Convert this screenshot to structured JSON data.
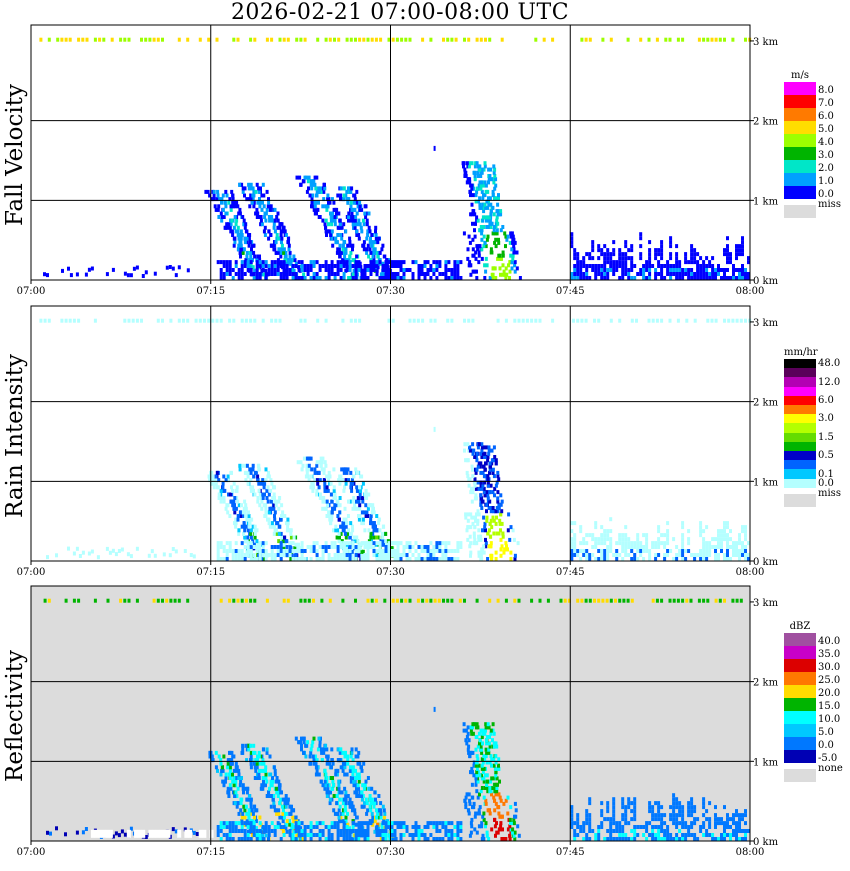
{
  "title": "2026-02-21   07:00-08:00 UTC",
  "x_ticks": [
    "07:00",
    "07:15",
    "07:30",
    "07:45",
    "08:00"
  ],
  "y_ticks": [
    "0 km",
    "1 km",
    "2 km",
    "3 km"
  ],
  "colors": {
    "missing": "#dcdcdc",
    "grid": "#000000"
  },
  "panels": [
    {
      "id": "fall-velocity",
      "label": "Fall Velocity",
      "unit": "m/s",
      "background": "#ffffff",
      "legend": [
        {
          "label": "8.0",
          "color": "#ff00ff"
        },
        {
          "label": "7.0",
          "color": "#ff0000"
        },
        {
          "label": "6.0",
          "color": "#ff7a00"
        },
        {
          "label": "5.0",
          "color": "#ffdd00"
        },
        {
          "label": "4.0",
          "color": "#9cff00"
        },
        {
          "label": "3.0",
          "color": "#00b400"
        },
        {
          "label": "2.0",
          "color": "#00e6c8"
        },
        {
          "label": "1.0",
          "color": "#00a0ff"
        },
        {
          "label": "0.0",
          "color": "#0000ff"
        }
      ],
      "missing_label": "miss"
    },
    {
      "id": "rain-intensity",
      "label": "Rain Intensity",
      "unit": "mm/hr",
      "background": "#ffffff",
      "legend": [
        {
          "label": "48.0",
          "color": "#000000"
        },
        {
          "label": "",
          "color": "#5a005a"
        },
        {
          "label": "12.0",
          "color": "#b400b4"
        },
        {
          "label": "",
          "color": "#ff00ff"
        },
        {
          "label": "6.0",
          "color": "#ff0000"
        },
        {
          "label": "",
          "color": "#ff7a00"
        },
        {
          "label": "3.0",
          "color": "#ffff00"
        },
        {
          "label": "",
          "color": "#b4ff00"
        },
        {
          "label": "1.5",
          "color": "#64dc00"
        },
        {
          "label": "",
          "color": "#00b400"
        },
        {
          "label": "0.5",
          "color": "#0000c8"
        },
        {
          "label": "",
          "color": "#0064ff"
        },
        {
          "label": "0.1",
          "color": "#00c8ff"
        },
        {
          "label": "0.0",
          "color": "#b4ffff"
        }
      ],
      "missing_label": "miss"
    },
    {
      "id": "reflectivity",
      "label": "Reflectivity",
      "unit": "dBZ",
      "background": "#dcdcdc",
      "legend": [
        {
          "label": "40.0",
          "color": "#a050a0"
        },
        {
          "label": "35.0",
          "color": "#c800c8"
        },
        {
          "label": "30.0",
          "color": "#dc0000"
        },
        {
          "label": "25.0",
          "color": "#ff7800"
        },
        {
          "label": "20.0",
          "color": "#ffdc00"
        },
        {
          "label": "15.0",
          "color": "#00b400"
        },
        {
          "label": "10.0",
          "color": "#00ffff"
        },
        {
          "label": "5.0",
          "color": "#00c8ff"
        },
        {
          "label": "0.0",
          "color": "#0078ff"
        },
        {
          "label": "-5.0",
          "color": "#0000b4"
        }
      ],
      "missing_label": "none"
    }
  ],
  "chart_data": {
    "type": "heatmap",
    "title": "2026-02-21   07:00-08:00 UTC",
    "x_range": [
      "07:00",
      "08:00"
    ],
    "y_range_km": [
      0,
      3.2
    ],
    "grid": true,
    "structures": [
      {
        "name": "clutter-top",
        "t0": 0,
        "t1": 60,
        "h0": 2.97,
        "h1": 3.02
      },
      {
        "name": "drizzle-early",
        "t0": 0.5,
        "t1": 9.5,
        "h0": 0,
        "h1": 0.2
      },
      {
        "name": "band-1",
        "t0": 15,
        "t1": 21,
        "h0": 0,
        "h1": 1.1,
        "tilt": 1
      },
      {
        "name": "band-2",
        "t0": 18,
        "t1": 24,
        "h0": 0,
        "h1": 1.2,
        "tilt": 1
      },
      {
        "name": "band-3",
        "t0": 23,
        "t1": 30,
        "h0": 0,
        "h1": 1.3,
        "tilt": 1
      },
      {
        "name": "band-4",
        "t0": 26,
        "t1": 31,
        "h0": 0,
        "h1": 1.2,
        "tilt": 1
      },
      {
        "name": "core-main",
        "t0": 36.5,
        "t1": 42,
        "h0": 0,
        "h1": 1.45
      },
      {
        "name": "trail-late",
        "t0": 45,
        "t1": 60,
        "h0": 0,
        "h1": 0.6
      }
    ]
  }
}
